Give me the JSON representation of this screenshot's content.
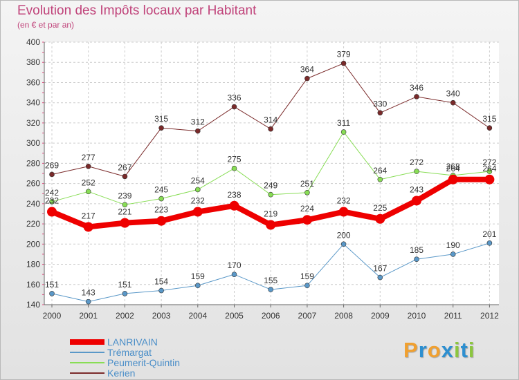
{
  "header": {
    "title": "Evolution des Impôts locaux par Habitant",
    "subtitle": "(en € et par an)"
  },
  "logo": {
    "letters": [
      "P",
      "r",
      "o",
      "x",
      "i",
      "t",
      "i"
    ],
    "colors": [
      "#f0a030",
      "#2d8fd0",
      "#f0a030",
      "#2d8fd0",
      "#8cc63f",
      "#2d8fd0",
      "#8cc63f"
    ]
  },
  "colors": {
    "axis": "#666666",
    "grid": "#cccccc",
    "text": "#333333",
    "minor_ticks": "#e05080"
  },
  "chart_data": {
    "type": "line",
    "title": "Evolution des Impôts locaux par Habitant",
    "subtitle": "(en € et par an)",
    "xlabel": "",
    "ylabel": "",
    "x": [
      "2000",
      "2001",
      "2002",
      "2003",
      "2004",
      "2005",
      "2006",
      "2007",
      "2008",
      "2009",
      "2010",
      "2011",
      "2012"
    ],
    "ylim": [
      140,
      400
    ],
    "yticks": [
      140,
      160,
      180,
      200,
      220,
      240,
      260,
      280,
      300,
      320,
      340,
      360,
      380,
      400
    ],
    "grid": true,
    "legend_position": "bottom-left",
    "series": [
      {
        "name": "Kerien",
        "color": "#7a2a2a",
        "width": 1,
        "values": [
          269,
          277,
          267,
          315,
          312,
          336,
          314,
          364,
          379,
          330,
          346,
          340,
          315
        ],
        "labels": [
          "269",
          "277",
          "267",
          "315",
          "312",
          "336",
          "314",
          "364",
          "379",
          "330",
          "346",
          "340",
          "315"
        ]
      },
      {
        "name": "Peumerit-Quintin",
        "color": "#88dd55",
        "width": 1,
        "values": [
          242,
          252,
          239,
          245,
          254,
          275,
          249,
          251,
          311,
          264,
          272,
          268,
          272
        ],
        "labels": [
          "242",
          "252",
          "239",
          "245",
          "254",
          "275",
          "249",
          "251",
          "311",
          "264",
          "272",
          "268",
          "272"
        ]
      },
      {
        "name": "Trémargat",
        "color": "#5a98c8",
        "width": 1,
        "values": [
          151,
          143,
          151,
          154,
          159,
          170,
          155,
          159,
          200,
          167,
          185,
          190,
          201
        ],
        "labels": [
          "151",
          "143",
          "151",
          "154",
          "159",
          "170",
          "155",
          "159",
          "200",
          "167",
          "185",
          "190",
          "201"
        ]
      },
      {
        "name": "LANRIVAIN",
        "color": "#ee0000",
        "width": 8,
        "values": [
          232,
          217,
          221,
          223,
          232,
          238,
          219,
          224,
          232,
          225,
          243,
          264,
          264
        ],
        "labels": [
          "232",
          "217",
          "221",
          "223",
          "232",
          "238",
          "219",
          "224",
          "232",
          "225",
          "243",
          "264",
          "264"
        ]
      }
    ],
    "legend": [
      "LANRIVAIN",
      "Trémargat",
      "Peumerit-Quintin",
      "Kerien"
    ]
  }
}
